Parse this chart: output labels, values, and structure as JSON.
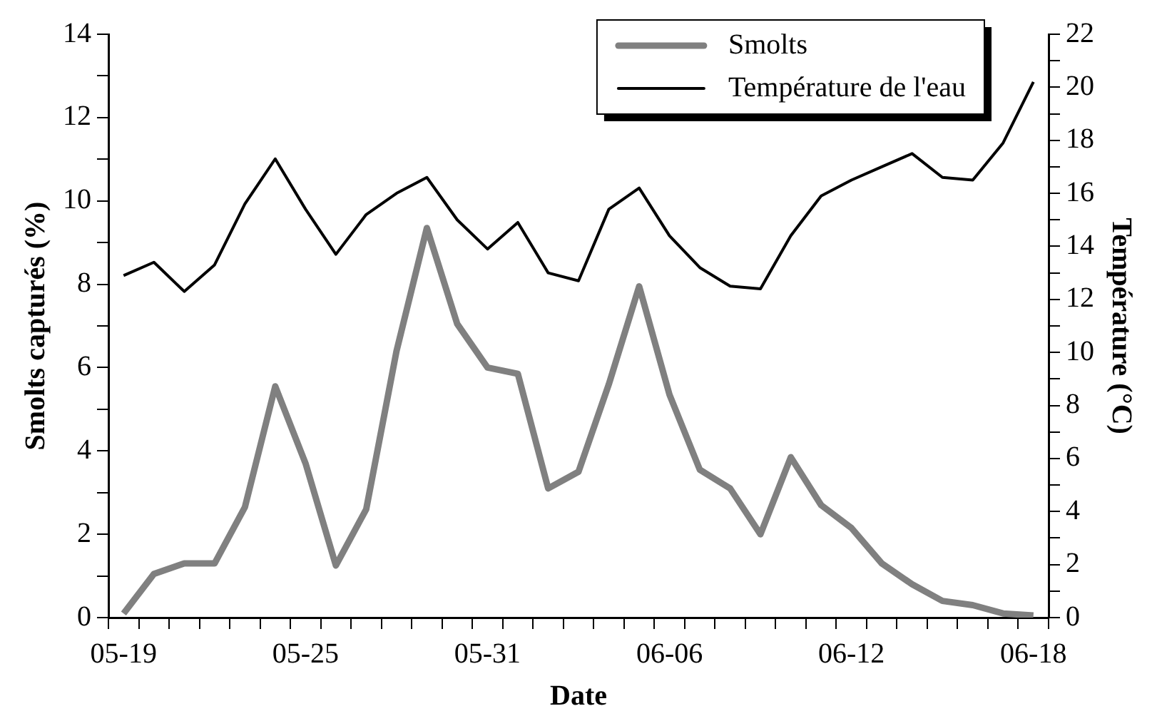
{
  "chart_data": {
    "type": "line",
    "xlabel": "Date",
    "ylabel": "Smolts capturés (%)",
    "y2label": "Température (°C)",
    "categories": [
      "05-19",
      null,
      null,
      null,
      null,
      null,
      "05-25",
      null,
      null,
      null,
      null,
      null,
      "05-31",
      null,
      null,
      null,
      null,
      null,
      "06-06",
      null,
      null,
      null,
      null,
      null,
      "06-12",
      null,
      null,
      null,
      null,
      null,
      "06-18"
    ],
    "series": [
      {
        "name": "Smolts",
        "color": "#808080",
        "values": [
          0.1,
          1.05,
          1.3,
          1.3,
          2.65,
          5.55,
          3.7,
          1.25,
          2.6,
          6.4,
          9.35,
          7.05,
          6.0,
          5.85,
          3.1,
          3.5,
          5.6,
          7.95,
          5.35,
          3.55,
          3.1,
          2.0,
          3.85,
          2.7,
          2.15,
          1.3,
          0.8,
          0.4,
          0.3,
          0.1,
          0.05
        ]
      },
      {
        "name": "Température de l'eau",
        "color": "#000000",
        "axis": "y2",
        "values": [
          12.9,
          13.4,
          12.3,
          13.3,
          15.6,
          17.3,
          15.4,
          13.7,
          15.2,
          16.0,
          16.6,
          15.0,
          13.9,
          14.9,
          13.0,
          12.7,
          15.4,
          16.2,
          14.4,
          13.2,
          12.5,
          12.4,
          14.4,
          15.9,
          16.5,
          17.0,
          17.5,
          16.6,
          16.5,
          17.9,
          20.2
        ]
      }
    ],
    "ylim": [
      0,
      14
    ],
    "yticks": [
      0,
      {
        "value": 1,
        "label": null
      },
      2,
      {
        "value": 3,
        "label": null
      },
      4,
      {
        "value": 5,
        "label": null
      },
      6,
      {
        "value": 7,
        "label": null
      },
      8,
      {
        "value": 9,
        "label": null
      },
      10,
      {
        "value": 11,
        "label": null
      },
      12,
      {
        "value": 13,
        "label": null
      },
      14
    ],
    "y2lim": [
      0,
      22
    ],
    "y2ticks": [
      0,
      {
        "value": 1,
        "label": null
      },
      2,
      {
        "value": 3,
        "label": null
      },
      4,
      {
        "value": 5,
        "label": null
      },
      6,
      {
        "value": 7,
        "label": null
      },
      8,
      {
        "value": 9,
        "label": null
      },
      10,
      {
        "value": 11,
        "label": null
      },
      12,
      {
        "value": 13,
        "label": null
      },
      14,
      {
        "value": 15,
        "label": null
      },
      16,
      {
        "value": 17,
        "label": null
      },
      18,
      {
        "value": 19,
        "label": null
      },
      20,
      {
        "value": 21,
        "label": null
      },
      22
    ],
    "grid": false,
    "legend": "top right",
    "marker": "none",
    "line_style": "solid"
  }
}
